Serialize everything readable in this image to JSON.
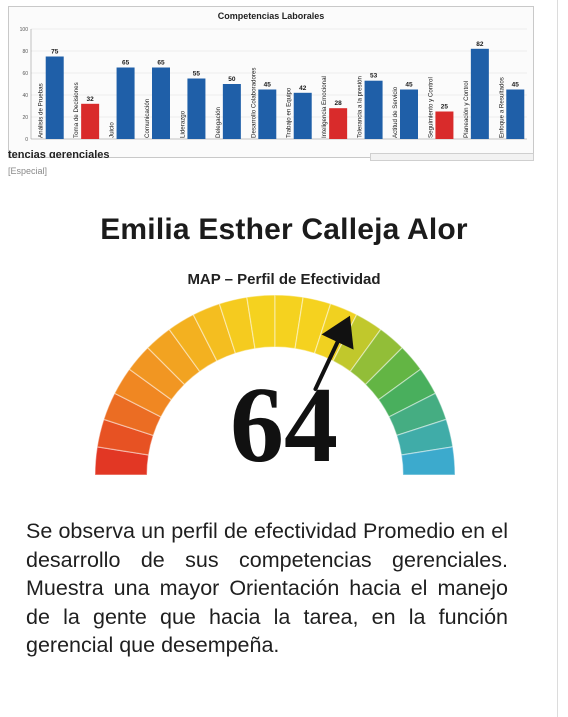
{
  "chart_data": [
    {
      "type": "bar",
      "title": "Competencias Laborales",
      "categories": [
        "Análisis de Pruebas",
        "Toma de Decisiones",
        "Juicio",
        "Comunicación",
        "Liderazgo",
        "Delegación",
        "Desarrollo Colaboradores",
        "Trabajo en Equipo",
        "Inteligencia Emocional",
        "Tolerancia a la presión",
        "Actitud de Servicio",
        "Seguimiento y Control",
        "Planeación y Control",
        "Enfoque a Resultados"
      ],
      "values": [
        75,
        32,
        65,
        65,
        55,
        50,
        45,
        42,
        28,
        53,
        45,
        25,
        82,
        45
      ],
      "bar_colors": [
        "#1f5fa8",
        "#d92b2b",
        "#1f5fa8",
        "#1f5fa8",
        "#1f5fa8",
        "#1f5fa8",
        "#1f5fa8",
        "#1f5fa8",
        "#d92b2b",
        "#1f5fa8",
        "#1f5fa8",
        "#d92b2b",
        "#1f5fa8",
        "#1f5fa8"
      ],
      "ylim": [
        0,
        100
      ],
      "yticks": [
        0,
        20,
        40,
        60,
        80,
        100
      ],
      "grid": true
    },
    {
      "type": "gauge",
      "title": "MAP – Perfil de Efectividad",
      "value": 64,
      "range": [
        0,
        100
      ]
    }
  ],
  "header": {
    "cut_text": "tencias gerenciales",
    "credit": "[Especial]"
  },
  "profile": {
    "name": "Emilia Esther Calleja Alor",
    "summary": "Se observa un perfil de efectividad Promedio en el desarrollo de sus competencias gerenciales. Muestra una mayor Orientación hacia el manejo de la gente que hacia la tarea, en la función gerencial que desempeña."
  },
  "colors": {
    "bar_blue": "#1f5fa8",
    "bar_red": "#d92b2b",
    "gauge_red": "#e02a24",
    "gauge_orange": "#f08a22",
    "gauge_yellow": "#f5d21f",
    "gauge_green": "#4bb04a",
    "gauge_blue": "#3aa9e0"
  }
}
